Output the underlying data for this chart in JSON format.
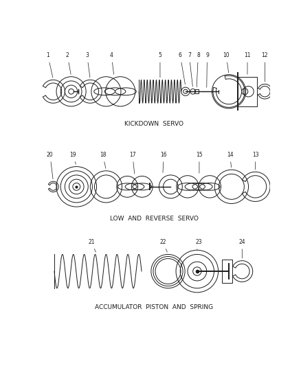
{
  "background_color": "#ffffff",
  "line_color": "#1a1a1a",
  "text_color": "#1a1a1a",
  "section1_label": "KICKDOWN  SERVO",
  "section2_label": "LOW  AND  REVERSE  SERVO",
  "section3_label": "ACCUMULATOR  PISTON  AND  SPRING",
  "fig_width": 4.38,
  "fig_height": 5.33,
  "dpi": 100
}
